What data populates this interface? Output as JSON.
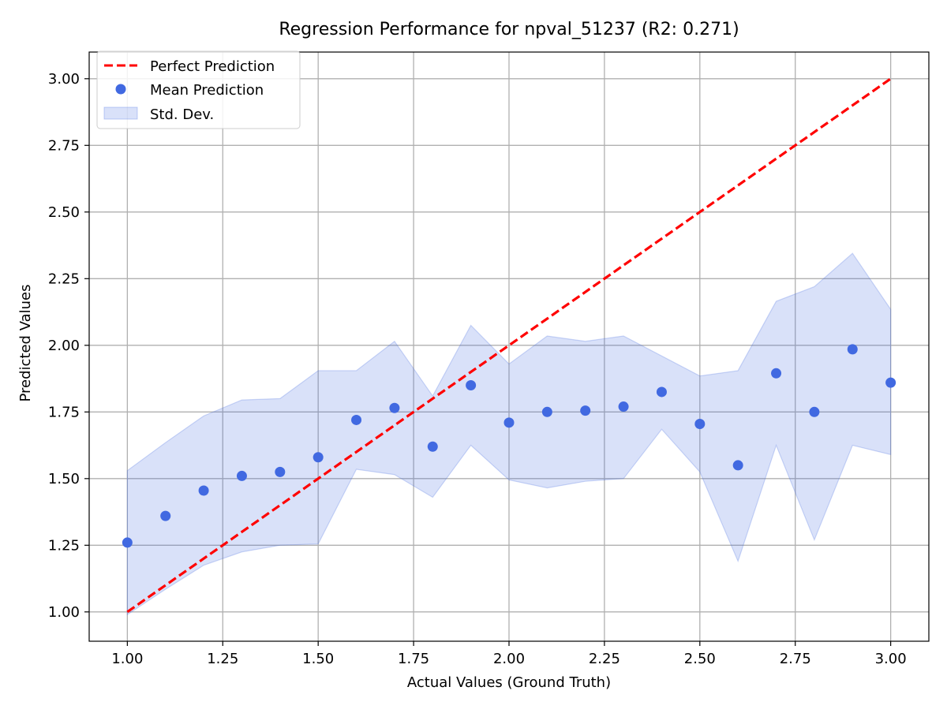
{
  "chart_data": {
    "type": "scatter",
    "title": "Regression Performance for npval_51237 (R2: 0.271)",
    "xlabel": "Actual Values (Ground Truth)",
    "ylabel": "Predicted Values",
    "xlim": [
      0.9,
      3.1
    ],
    "ylim": [
      0.89,
      3.1
    ],
    "xticks": [
      "1.00",
      "1.25",
      "1.50",
      "1.75",
      "2.00",
      "2.25",
      "2.50",
      "2.75",
      "3.00"
    ],
    "yticks": [
      "1.00",
      "1.25",
      "1.50",
      "1.75",
      "2.00",
      "2.25",
      "2.50",
      "2.75",
      "3.00"
    ],
    "grid": true,
    "legend_position": "upper-left",
    "legend": {
      "perfect": "Perfect Prediction",
      "mean": "Mean Prediction",
      "std": "Std. Dev."
    },
    "colors": {
      "perfect": "#ff0000",
      "mean": "#4169e1",
      "band_fill": "#4169e1",
      "grid": "#b0b0b0"
    },
    "perfect_line": {
      "x": [
        1.0,
        3.0
      ],
      "y": [
        1.0,
        3.0
      ]
    },
    "series": [
      {
        "name": "Mean Prediction",
        "x": [
          1.0,
          1.1,
          1.2,
          1.3,
          1.4,
          1.5,
          1.6,
          1.7,
          1.8,
          1.9,
          2.0,
          2.1,
          2.2,
          2.3,
          2.4,
          2.5,
          2.6,
          2.7,
          2.8,
          2.9,
          3.0
        ],
        "y": [
          1.26,
          1.36,
          1.455,
          1.51,
          1.525,
          1.58,
          1.72,
          1.765,
          1.62,
          1.85,
          1.71,
          1.75,
          1.755,
          1.77,
          1.825,
          1.705,
          1.55,
          1.895,
          1.75,
          1.985,
          1.86
        ]
      }
    ],
    "std_band": {
      "name": "Std. Dev.",
      "x": [
        1.0,
        1.1,
        1.2,
        1.3,
        1.4,
        1.5,
        1.6,
        1.7,
        1.8,
        1.9,
        2.0,
        2.1,
        2.2,
        2.3,
        2.4,
        2.5,
        2.6,
        2.7,
        2.8,
        2.9,
        3.0
      ],
      "upper": [
        1.53,
        1.635,
        1.735,
        1.795,
        1.8,
        1.905,
        1.905,
        2.015,
        1.81,
        2.075,
        1.93,
        2.035,
        2.015,
        2.035,
        1.96,
        1.885,
        1.905,
        2.165,
        2.22,
        2.345,
        2.135
      ],
      "lower": [
        0.99,
        1.085,
        1.175,
        1.225,
        1.25,
        1.255,
        1.535,
        1.515,
        1.43,
        1.625,
        1.495,
        1.465,
        1.49,
        1.5,
        1.685,
        1.525,
        1.19,
        1.625,
        1.27,
        1.625,
        1.59
      ]
    }
  }
}
